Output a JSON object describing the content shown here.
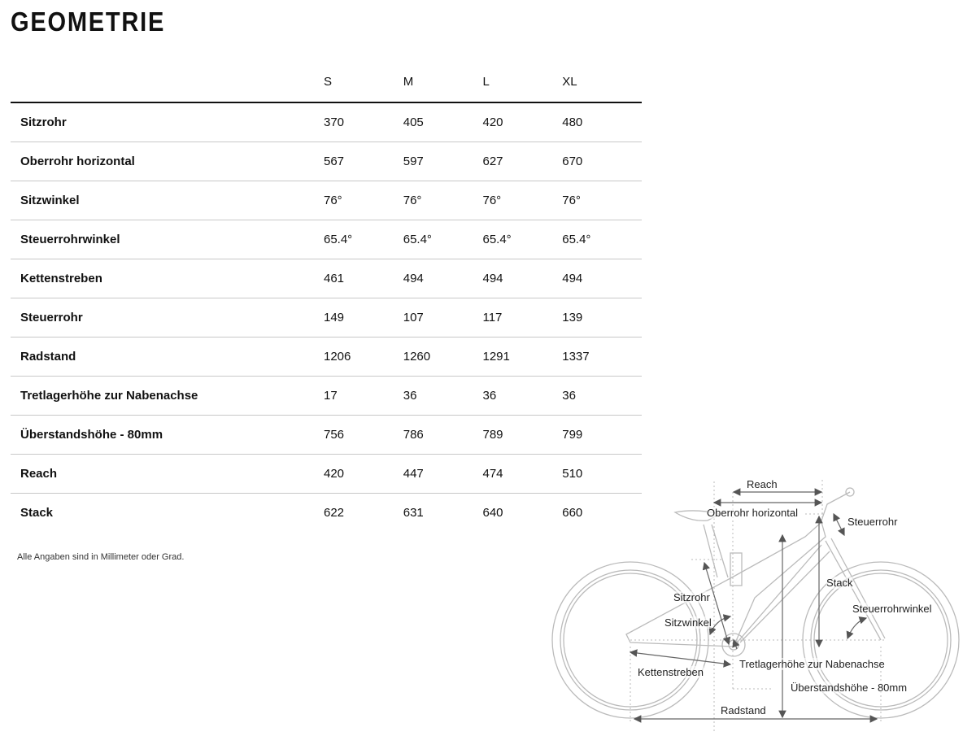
{
  "title": "GEOMETRIE",
  "sizes": [
    "S",
    "M",
    "L",
    "XL"
  ],
  "rows": [
    {
      "label": "Sitzrohr",
      "values": [
        "370",
        "405",
        "420",
        "480"
      ]
    },
    {
      "label": "Oberrohr horizontal",
      "values": [
        "567",
        "597",
        "627",
        "670"
      ]
    },
    {
      "label": "Sitzwinkel",
      "values": [
        "76°",
        "76°",
        "76°",
        "76°"
      ]
    },
    {
      "label": "Steuerrohrwinkel",
      "values": [
        "65.4°",
        "65.4°",
        "65.4°",
        "65.4°"
      ]
    },
    {
      "label": "Kettenstreben",
      "values": [
        "461",
        "494",
        "494",
        "494"
      ]
    },
    {
      "label": "Steuerrohr",
      "values": [
        "149",
        "107",
        "117",
        "139"
      ]
    },
    {
      "label": "Radstand",
      "values": [
        "1206",
        "1260",
        "1291",
        "1337"
      ]
    },
    {
      "label": "Tretlagerhöhe zur Nabenachse",
      "values": [
        "17",
        "36",
        "36",
        "36"
      ]
    },
    {
      "label": "Überstandshöhe - 80mm",
      "values": [
        "756",
        "786",
        "789",
        "799"
      ]
    },
    {
      "label": "Reach",
      "values": [
        "420",
        "447",
        "474",
        "510"
      ]
    },
    {
      "label": "Stack",
      "values": [
        "622",
        "631",
        "640",
        "660"
      ]
    }
  ],
  "note": "Alle Angaben sind in Millimeter oder Grad.",
  "diagram": {
    "reach": "Reach",
    "oberrohr": "Oberrohr horizontal",
    "steuerrohr": "Steuerrohr",
    "stack": "Stack",
    "sitzrohr": "Sitzrohr",
    "steuerrohrwinkel": "Steuerrohrwinkel",
    "sitzwinkel": "Sitzwinkel",
    "tretlager": "Tretlagerhöhe zur Nabenachse",
    "kettenstreben": "Kettenstreben",
    "ueberstand": "Überstandshöhe - 80mm",
    "radstand": "Radstand"
  }
}
